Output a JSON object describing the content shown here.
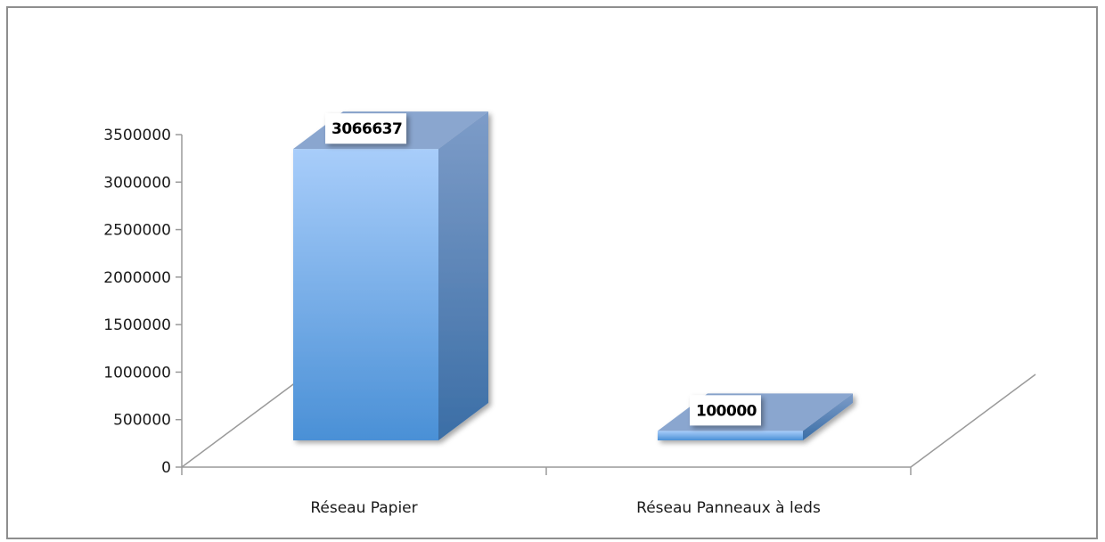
{
  "chart_data": {
    "type": "bar",
    "categories": [
      "Réseau Papier",
      "Réseau Panneaux à leds"
    ],
    "values": [
      3066637,
      100000
    ],
    "data_labels": [
      "3066637",
      "100000"
    ],
    "ylim": [
      0,
      3500000
    ],
    "yticks": [
      0,
      500000,
      1000000,
      1500000,
      2000000,
      2500000,
      3000000,
      3500000
    ],
    "ytick_labels": [
      "0",
      "500000",
      "1000000",
      "1500000",
      "2000000",
      "2500000",
      "3000000",
      "3500000"
    ],
    "title": "",
    "xlabel": "",
    "ylabel": "",
    "grid": false,
    "legend": "none",
    "style": "3d-column",
    "colors": {
      "bar_front_light": "#a8cdfa",
      "bar_front_dark": "#4a90d6",
      "bar_side_light": "#7d9cc8",
      "bar_side_dark": "#3b6ea6",
      "bar_top": "#8aa6cf",
      "axis": "#9a9a9a"
    }
  }
}
